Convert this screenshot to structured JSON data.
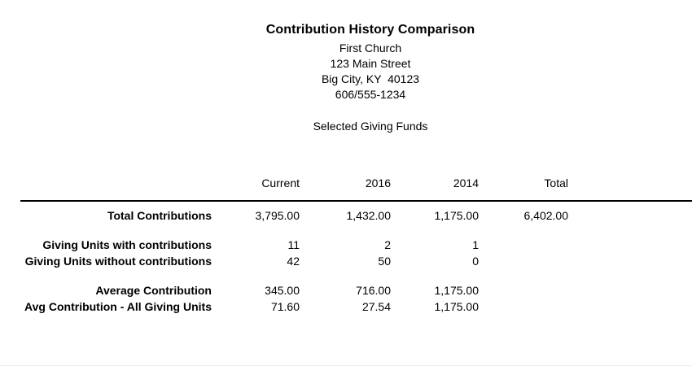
{
  "header": {
    "title": "Contribution History Comparison",
    "org_name": "First Church",
    "address_line1": "123 Main Street",
    "address_line2": "Big City, KY  40123",
    "phone": "606/555-1234",
    "subtitle": "Selected Giving Funds"
  },
  "table": {
    "columns": [
      "Current",
      "2016",
      "2014",
      "Total"
    ],
    "rows": [
      {
        "label": "Total Contributions",
        "values": [
          "3,795.00",
          "1,432.00",
          "1,175.00",
          "6,402.00"
        ]
      },
      {
        "label": "Giving Units with contributions",
        "values": [
          "11",
          "2",
          "1",
          ""
        ]
      },
      {
        "label": "Giving Units without contributions",
        "values": [
          "42",
          "50",
          "0",
          ""
        ]
      },
      {
        "label": "Average Contribution",
        "values": [
          "345.00",
          "716.00",
          "1,175.00",
          ""
        ]
      },
      {
        "label": "Avg Contribution - All Giving Units",
        "values": [
          "71.60",
          "27.54",
          "1,175.00",
          ""
        ]
      }
    ]
  },
  "colors": {
    "text": "#000000",
    "rule": "#000000",
    "background": "#ffffff"
  }
}
